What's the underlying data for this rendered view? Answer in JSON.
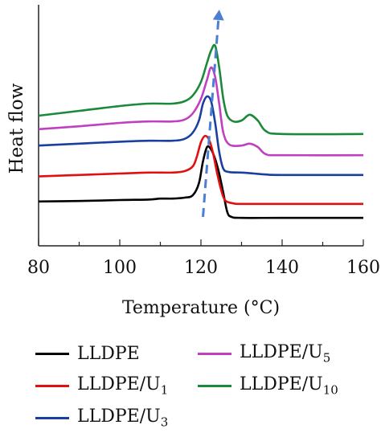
{
  "chart_data": {
    "type": "line",
    "title": "",
    "xlabel": "Temperature (°C)",
    "ylabel": "Heat flow",
    "xlim": [
      80,
      160
    ],
    "x_ticks": [
      "80",
      "100",
      "120",
      "140",
      "160"
    ],
    "y_ticks": [],
    "grid": false,
    "legend_position": "bottom",
    "series": [
      {
        "name": "LLDPE",
        "color": "#000000",
        "points": [
          [
            80,
            0.92
          ],
          [
            90,
            0.93
          ],
          [
            100,
            0.95
          ],
          [
            107,
            0.96
          ],
          [
            110,
            0.98
          ],
          [
            113,
            0.98
          ],
          [
            116,
            1.0
          ],
          [
            118,
            1.05
          ],
          [
            119.5,
            1.3
          ],
          [
            120.5,
            1.75
          ],
          [
            121.5,
            2.05
          ],
          [
            122.5,
            2.0
          ],
          [
            123.5,
            1.8
          ],
          [
            124.5,
            1.5
          ],
          [
            125.5,
            1.1
          ],
          [
            126.5,
            0.7
          ],
          [
            127.5,
            0.6
          ],
          [
            130,
            0.58
          ],
          [
            140,
            0.58
          ],
          [
            160,
            0.58
          ]
        ]
      },
      {
        "name": "LLDPE/U",
        "sub": "1",
        "color": "#e01010",
        "points": [
          [
            80,
            1.44
          ],
          [
            90,
            1.47
          ],
          [
            100,
            1.5
          ],
          [
            107,
            1.52
          ],
          [
            113,
            1.52
          ],
          [
            116,
            1.55
          ],
          [
            118,
            1.65
          ],
          [
            119,
            1.85
          ],
          [
            120,
            2.15
          ],
          [
            121,
            2.28
          ],
          [
            122,
            2.2
          ],
          [
            123,
            1.92
          ],
          [
            124,
            1.5
          ],
          [
            125,
            1.15
          ],
          [
            126,
            0.94
          ],
          [
            128,
            0.88
          ],
          [
            130,
            0.87
          ],
          [
            140,
            0.87
          ],
          [
            160,
            0.87
          ]
        ]
      },
      {
        "name": "LLDPE/U",
        "sub": "3",
        "color": "#1a3fa0",
        "points": [
          [
            80,
            2.08
          ],
          [
            90,
            2.12
          ],
          [
            100,
            2.16
          ],
          [
            107,
            2.18
          ],
          [
            113,
            2.18
          ],
          [
            116,
            2.22
          ],
          [
            118,
            2.35
          ],
          [
            119.5,
            2.6
          ],
          [
            120.5,
            2.95
          ],
          [
            121.5,
            3.1
          ],
          [
            122.5,
            3.0
          ],
          [
            123.5,
            2.55
          ],
          [
            124.5,
            1.95
          ],
          [
            125.5,
            1.6
          ],
          [
            127,
            1.53
          ],
          [
            130,
            1.52
          ],
          [
            133,
            1.5
          ],
          [
            136,
            1.48
          ],
          [
            140,
            1.47
          ],
          [
            160,
            1.47
          ]
        ]
      },
      {
        "name": "LLDPE/U",
        "sub": "5",
        "color": "#c040c0",
        "points": [
          [
            80,
            2.42
          ],
          [
            90,
            2.48
          ],
          [
            100,
            2.55
          ],
          [
            107,
            2.58
          ],
          [
            113,
            2.58
          ],
          [
            116,
            2.62
          ],
          [
            118,
            2.75
          ],
          [
            120,
            3.05
          ],
          [
            121.5,
            3.45
          ],
          [
            122.5,
            3.7
          ],
          [
            123.5,
            3.5
          ],
          [
            124.5,
            2.95
          ],
          [
            125.5,
            2.35
          ],
          [
            127,
            2.1
          ],
          [
            130,
            2.08
          ],
          [
            132,
            2.12
          ],
          [
            134,
            2.05
          ],
          [
            136,
            1.9
          ],
          [
            140,
            1.88
          ],
          [
            160,
            1.88
          ]
        ]
      },
      {
        "name": "LLDPE/U",
        "sub": "10",
        "color": "#1a8a3a",
        "points": [
          [
            80,
            2.7
          ],
          [
            90,
            2.8
          ],
          [
            100,
            2.9
          ],
          [
            107,
            2.95
          ],
          [
            113,
            2.95
          ],
          [
            116,
            3.0
          ],
          [
            118,
            3.12
          ],
          [
            120,
            3.4
          ],
          [
            121.5,
            3.8
          ],
          [
            122.5,
            4.05
          ],
          [
            123.5,
            4.15
          ],
          [
            124.5,
            3.7
          ],
          [
            125.5,
            3.05
          ],
          [
            126.5,
            2.7
          ],
          [
            128,
            2.58
          ],
          [
            130,
            2.6
          ],
          [
            132,
            2.72
          ],
          [
            134,
            2.6
          ],
          [
            136,
            2.38
          ],
          [
            140,
            2.32
          ],
          [
            160,
            2.32
          ]
        ]
      }
    ],
    "annotations": [
      {
        "type": "dashed-arrow",
        "color": "#4a7fd4",
        "from": [
          120.5,
          0.6
        ],
        "to": [
          124.5,
          4.9
        ]
      }
    ]
  }
}
